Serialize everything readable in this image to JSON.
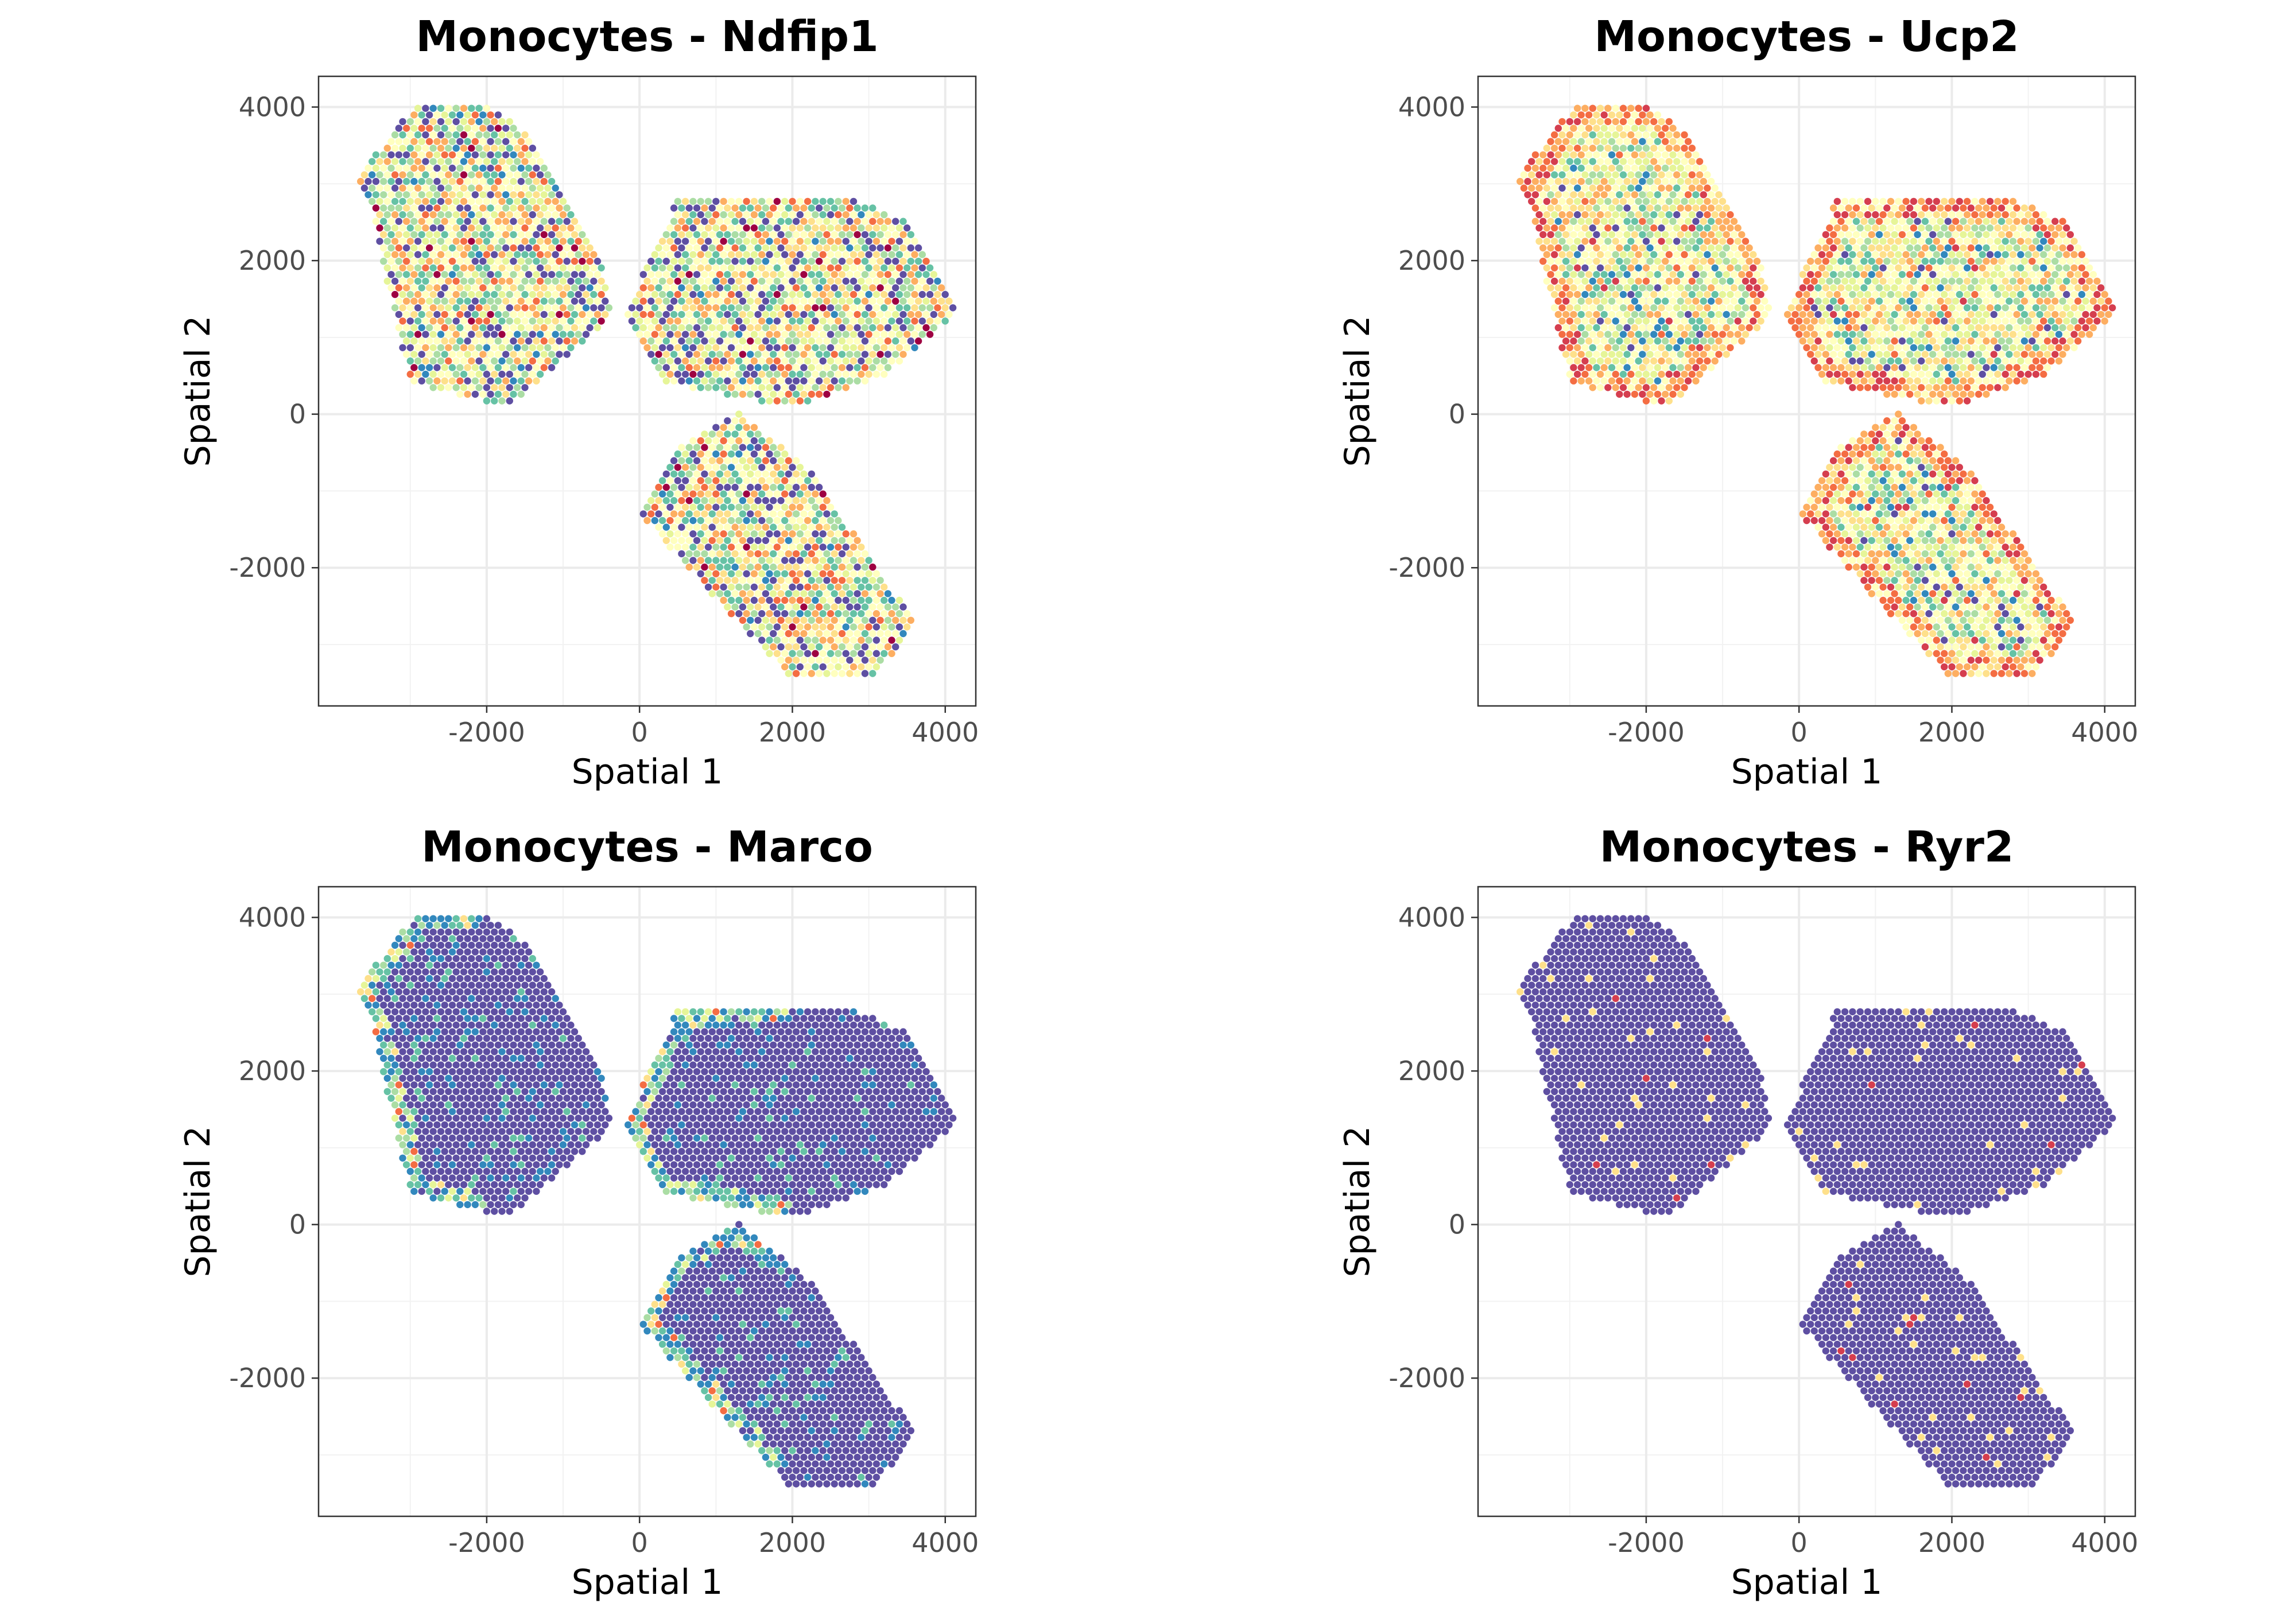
{
  "chart_data": [
    {
      "type": "scatter",
      "title": "Monocytes - Ndfip1",
      "xlabel": "Spatial 1",
      "ylabel": "Spatial 2",
      "xlim": [
        -4200,
        4400
      ],
      "ylim": [
        -3800,
        4400
      ],
      "xticks": [
        -2000,
        0,
        2000,
        4000
      ],
      "yticks": [
        -2000,
        0,
        2000,
        4000
      ],
      "xtick_labels": [
        "-2000",
        "0",
        "2000",
        "4000"
      ],
      "ytick_labels": [
        "-2000",
        "0",
        "2000",
        "4000"
      ],
      "grid": true,
      "pattern": "mixed",
      "seed": 11
    },
    {
      "type": "scatter",
      "title": "Monocytes - Ucp2",
      "xlabel": "Spatial 1",
      "ylabel": "Spatial 2",
      "xlim": [
        -4200,
        4400
      ],
      "ylim": [
        -3800,
        4400
      ],
      "xticks": [
        -2000,
        0,
        2000,
        4000
      ],
      "yticks": [
        -2000,
        0,
        2000,
        4000
      ],
      "xtick_labels": [
        "-2000",
        "0",
        "2000",
        "4000"
      ],
      "ytick_labels": [
        "-2000",
        "0",
        "2000",
        "4000"
      ],
      "grid": true,
      "pattern": "warm",
      "seed": 23
    },
    {
      "type": "scatter",
      "title": "Monocytes - Marco",
      "xlabel": "Spatial 1",
      "ylabel": "Spatial 2",
      "xlim": [
        -4200,
        4400
      ],
      "ylim": [
        -3800,
        4400
      ],
      "xticks": [
        -2000,
        0,
        2000,
        4000
      ],
      "yticks": [
        -2000,
        0,
        2000,
        4000
      ],
      "xtick_labels": [
        "-2000",
        "0",
        "2000",
        "4000"
      ],
      "ytick_labels": [
        "-2000",
        "0",
        "2000",
        "4000"
      ],
      "grid": true,
      "pattern": "edge",
      "seed": 37
    },
    {
      "type": "scatter",
      "title": "Monocytes - Ryr2",
      "xlabel": "Spatial 1",
      "ylabel": "Spatial 2",
      "xlim": [
        -4200,
        4400
      ],
      "ylim": [
        -3800,
        4400
      ],
      "xticks": [
        -2000,
        0,
        2000,
        4000
      ],
      "yticks": [
        -2000,
        0,
        2000,
        4000
      ],
      "xtick_labels": [
        "-2000",
        "0",
        "2000",
        "4000"
      ],
      "ytick_labels": [
        "-2000",
        "0",
        "2000",
        "4000"
      ],
      "grid": true,
      "pattern": "sparse",
      "seed": 51
    }
  ],
  "tissue_sections": [
    {
      "polygon": [
        [
          -2900,
          4050
        ],
        [
          -2000,
          4050
        ],
        [
          -1400,
          3600
        ],
        [
          -500,
          2000
        ],
        [
          -350,
          1300
        ],
        [
          -1700,
          100
        ],
        [
          -3000,
          400
        ],
        [
          -3500,
          2600
        ],
        [
          -3700,
          3100
        ]
      ]
    },
    {
      "polygon": [
        [
          -200,
          1300
        ],
        [
          500,
          2800
        ],
        [
          2700,
          2850
        ],
        [
          3500,
          2500
        ],
        [
          4150,
          1300
        ],
        [
          3200,
          500
        ],
        [
          2000,
          100
        ],
        [
          300,
          400
        ]
      ]
    },
    {
      "polygon": [
        [
          500,
          -400
        ],
        [
          1300,
          0
        ],
        [
          2200,
          -700
        ],
        [
          3600,
          -2700
        ],
        [
          3100,
          -3400
        ],
        [
          2000,
          -3450
        ],
        [
          1000,
          -2400
        ],
        [
          0,
          -1300
        ],
        [
          300,
          -700
        ]
      ]
    }
  ],
  "spot_spacing": 100,
  "colors": {
    "palette_spectral": [
      "#5e4fa2",
      "#3288bd",
      "#66c2a5",
      "#abdda4",
      "#e6f598",
      "#ffffbf",
      "#fee08b",
      "#fdae61",
      "#f46d43",
      "#d53e4f",
      "#9e0142"
    ],
    "panel_border": "#333333",
    "grid": "#ebebeb",
    "tick_label": "#4d4d4d"
  }
}
